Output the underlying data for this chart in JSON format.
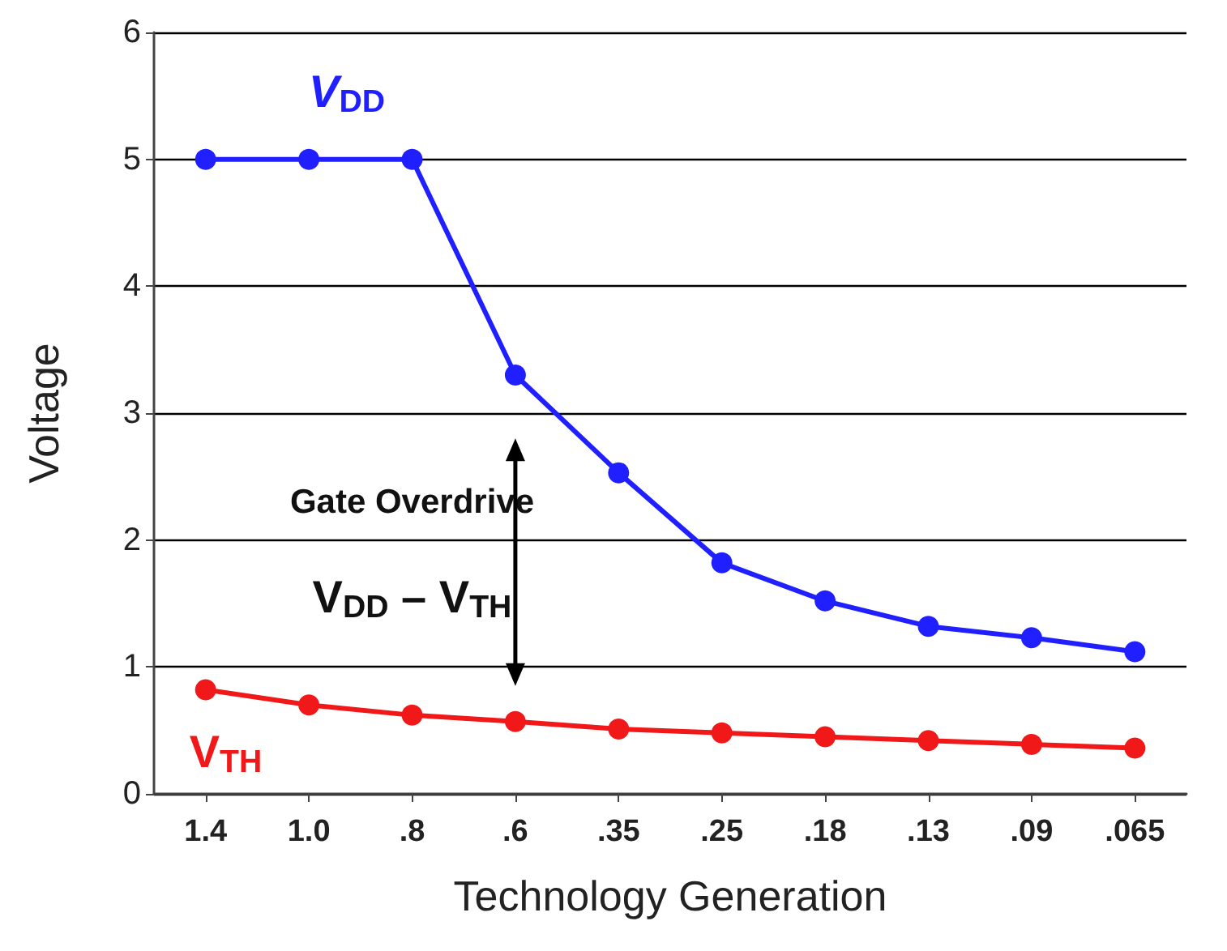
{
  "chart_data": {
    "type": "line",
    "xlabel": "Technology Generation",
    "ylabel": "Voltage",
    "categories": [
      "1.4",
      "1.0",
      ".8",
      ".6",
      ".35",
      ".25",
      ".18",
      ".13",
      ".09",
      ".065"
    ],
    "series": [
      {
        "name": "V$_{DD}$",
        "color": "#1f1fff",
        "values": [
          5,
          5,
          5,
          3.3,
          2.53,
          1.82,
          1.52,
          1.32,
          1.23,
          1.12
        ]
      },
      {
        "name": "V$_{TH}$",
        "color": "#f01818",
        "values": [
          0.82,
          0.7,
          0.62,
          0.57,
          0.51,
          0.48,
          0.45,
          0.42,
          0.39,
          0.36
        ]
      }
    ],
    "ylim": [
      0,
      6
    ],
    "yticks": [
      0,
      1,
      2,
      3,
      4,
      5,
      6
    ],
    "grid": "y",
    "legend": false,
    "marker": "circle",
    "line_style": "solid",
    "annotations": [
      "Gate Overdrive",
      "V$_{DD}$ – V$_{TH}$"
    ]
  }
}
